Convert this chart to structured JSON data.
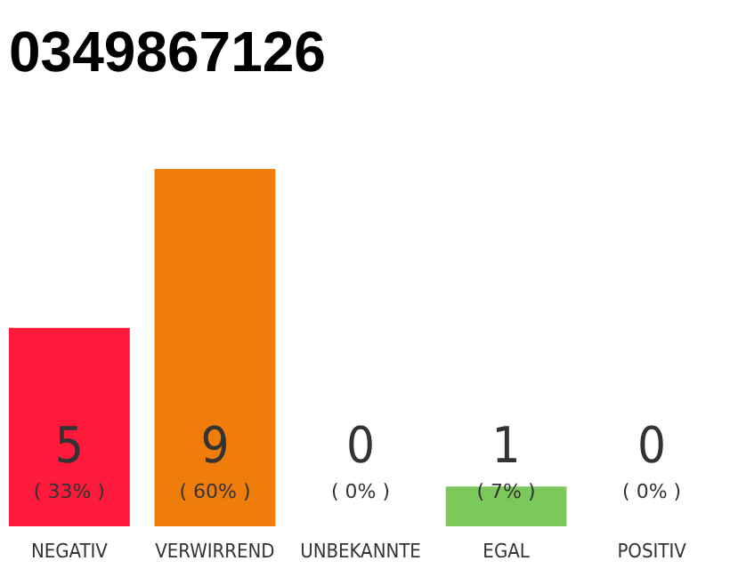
{
  "chart_data": {
    "type": "bar",
    "title": "0349867126",
    "categories": [
      "NEGATIV",
      "VERWIRREND",
      "UNBEKANNTE",
      "EGAL",
      "POSITIV"
    ],
    "values": [
      5,
      9,
      0,
      1,
      0
    ],
    "colors": [
      "#ff1a3c",
      "#f07d0a",
      "#9e9e9e",
      "#7dc85a",
      "#9e9e9e"
    ],
    "data_labels": true,
    "annotations": [
      "( 33% )",
      "( 60% )",
      "( 0% )",
      "( 7% )",
      "( 0% )"
    ]
  }
}
